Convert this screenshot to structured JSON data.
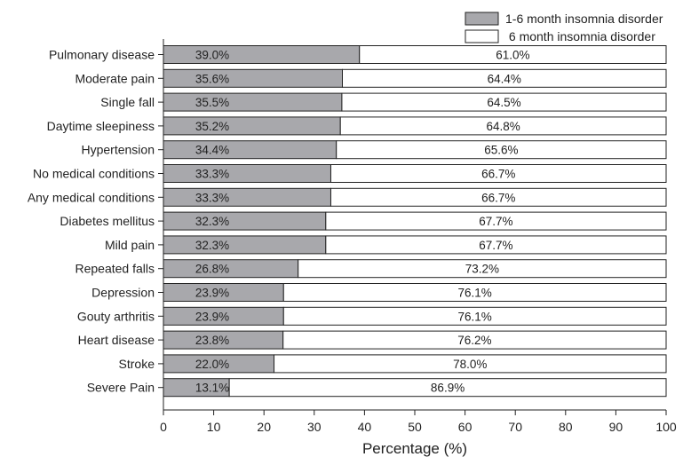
{
  "chart_data": {
    "type": "bar",
    "orientation": "horizontal",
    "stacked": true,
    "title": "",
    "xlabel": "Percentage (%)",
    "ylabel": "",
    "xlim": [
      0,
      100
    ],
    "xticks": [
      0,
      10,
      20,
      30,
      40,
      50,
      60,
      70,
      80,
      90,
      100
    ],
    "grid": false,
    "legend_position": "top-right",
    "categories": [
      "Pulmonary disease",
      "Moderate pain",
      "Single fall",
      "Daytime sleepiness",
      "Hypertension",
      "No medical conditions",
      "Any medical conditions",
      "Diabetes mellitus",
      "Mild pain",
      "Repeated falls",
      "Depression",
      "Gouty arthritis",
      "Heart disease",
      "Stroke",
      "Severe Pain"
    ],
    "series": [
      {
        "name": "1-6 month insomnia disorder",
        "color": "#a8a8ac",
        "values": [
          39.0,
          35.6,
          35.5,
          35.2,
          34.4,
          33.3,
          33.3,
          32.3,
          32.3,
          26.8,
          23.9,
          23.9,
          23.8,
          22.0,
          13.1
        ],
        "labels": [
          "39.0%",
          "35.6%",
          "35.5%",
          "35.2%",
          "34.4%",
          "33.3%",
          "33.3%",
          "32.3%",
          "32.3%",
          "26.8%",
          "23.9%",
          "23.9%",
          "23.8%",
          "22.0%",
          "13.1%"
        ]
      },
      {
        "name": " 6 month insomnia disorder",
        "color": "#ffffff",
        "values": [
          61.0,
          64.4,
          64.5,
          64.8,
          65.6,
          66.7,
          66.7,
          67.7,
          67.7,
          73.2,
          76.1,
          76.1,
          76.2,
          78.0,
          86.9
        ],
        "labels": [
          "61.0%",
          "64.4%",
          "64.5%",
          "64.8%",
          "65.6%",
          "66.7%",
          "66.7%",
          "67.7%",
          "67.7%",
          "73.2%",
          "76.1%",
          "76.1%",
          "76.2%",
          "78.0%",
          "86.9%"
        ]
      }
    ]
  }
}
